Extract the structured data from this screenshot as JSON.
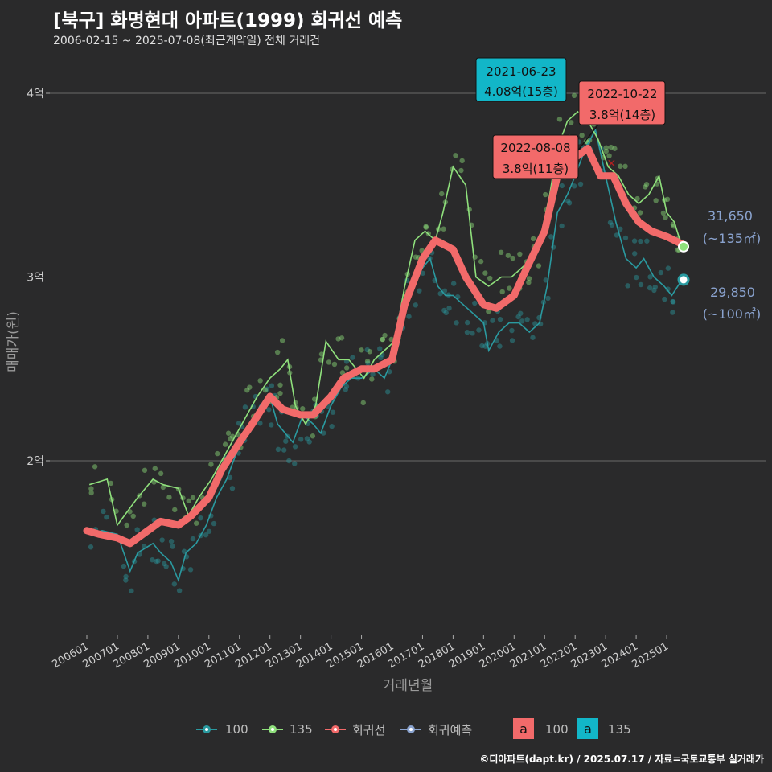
{
  "title": "[북구] 화명현대 아파트(1999) 회귀선 예측",
  "subtitle": "2006-02-15 ~ 2025-07-08(최근계약일) 전체 거래건",
  "caption": "©디아파트(dapt.kr) / 2025.07.17 / 자료=국토교통부 실거래가",
  "colors": {
    "s100": "#2a9aa0",
    "s135": "#8fe07c",
    "reg": "#f26a6a",
    "pred": "#8aa3cf",
    "ann_blue": "#12b6c8",
    "ann_red": "#f26a6a"
  },
  "legend": {
    "items": [
      {
        "label": "100",
        "color": "#2a9aa0"
      },
      {
        "label": "135",
        "color": "#8fe07c"
      },
      {
        "label": "회귀선",
        "color": "#f26a6a"
      },
      {
        "label": "회귀예측",
        "color": "#8aa3cf"
      }
    ],
    "keys": [
      {
        "letter": "a",
        "label": "100",
        "color": "#f26a6a"
      },
      {
        "letter": "a",
        "label": "135",
        "color": "#12b6c8"
      }
    ]
  },
  "chart_data": {
    "type": "line",
    "xlabel": "거래년월",
    "ylabel": "매매가(원)",
    "xlim": [
      "2006-01",
      "2025-12"
    ],
    "ylim": [
      1.0,
      4.25
    ],
    "y_unit": "억",
    "y_ticks": [
      {
        "value": 2,
        "label": "2억"
      },
      {
        "value": 3,
        "label": "3억"
      },
      {
        "value": 4,
        "label": "4억"
      }
    ],
    "x_ticks": [
      "200601",
      "200701",
      "200801",
      "200901",
      "201001",
      "201101",
      "201201",
      "201301",
      "201401",
      "201501",
      "201601",
      "201701",
      "201801",
      "201901",
      "202001",
      "202101",
      "202201",
      "202301",
      "202401",
      "202501"
    ],
    "grid": "horizontal",
    "series": [
      {
        "name": "100",
        "points": [
          [
            "2006-02",
            1.6
          ],
          [
            "2006-07",
            1.62
          ],
          [
            "2007-01",
            1.6
          ],
          [
            "2007-06",
            1.4
          ],
          [
            "2007-09",
            1.5
          ],
          [
            "2008-03",
            1.55
          ],
          [
            "2008-06",
            1.5
          ],
          [
            "2008-10",
            1.45
          ],
          [
            "2009-01",
            1.35
          ],
          [
            "2009-04",
            1.5
          ],
          [
            "2009-08",
            1.55
          ],
          [
            "2009-12",
            1.65
          ],
          [
            "2010-04",
            1.8
          ],
          [
            "2010-08",
            1.9
          ],
          [
            "2010-12",
            2.05
          ],
          [
            "2011-03",
            2.15
          ],
          [
            "2011-06",
            2.2
          ],
          [
            "2011-09",
            2.3
          ],
          [
            "2012-01",
            2.35
          ],
          [
            "2012-04",
            2.2
          ],
          [
            "2012-07",
            2.15
          ],
          [
            "2012-10",
            2.1
          ],
          [
            "2013-02",
            2.25
          ],
          [
            "2013-06",
            2.2
          ],
          [
            "2013-09",
            2.15
          ],
          [
            "2014-01",
            2.3
          ],
          [
            "2014-05",
            2.4
          ],
          [
            "2014-09",
            2.45
          ],
          [
            "2015-01",
            2.45
          ],
          [
            "2015-06",
            2.5
          ],
          [
            "2015-10",
            2.45
          ],
          [
            "2016-01",
            2.55
          ],
          [
            "2016-05",
            2.75
          ],
          [
            "2016-09",
            2.95
          ],
          [
            "2017-01",
            3.05
          ],
          [
            "2017-04",
            3.1
          ],
          [
            "2017-07",
            2.95
          ],
          [
            "2017-10",
            2.9
          ],
          [
            "2018-01",
            2.9
          ],
          [
            "2018-05",
            2.85
          ],
          [
            "2018-09",
            2.8
          ],
          [
            "2019-01",
            2.75
          ],
          [
            "2019-03",
            2.6
          ],
          [
            "2019-07",
            2.7
          ],
          [
            "2019-11",
            2.75
          ],
          [
            "2020-03",
            2.75
          ],
          [
            "2020-07",
            2.7
          ],
          [
            "2020-11",
            2.75
          ],
          [
            "2021-02",
            2.95
          ],
          [
            "2021-06",
            3.35
          ],
          [
            "2021-10",
            3.45
          ],
          [
            "2022-01",
            3.55
          ],
          [
            "2022-05",
            3.7
          ],
          [
            "2022-09",
            3.8
          ],
          [
            "2023-01",
            3.55
          ],
          [
            "2023-05",
            3.3
          ],
          [
            "2023-09",
            3.1
          ],
          [
            "2024-01",
            3.05
          ],
          [
            "2024-04",
            3.1
          ],
          [
            "2024-08",
            3.0
          ],
          [
            "2024-12",
            2.95
          ],
          [
            "2025-03",
            2.9
          ],
          [
            "2025-07",
            2.985
          ]
        ]
      },
      {
        "name": "135",
        "points": [
          [
            "2006-02",
            1.87
          ],
          [
            "2006-09",
            1.9
          ],
          [
            "2007-01",
            1.65
          ],
          [
            "2007-09",
            1.8
          ],
          [
            "2008-03",
            1.9
          ],
          [
            "2008-07",
            1.87
          ],
          [
            "2009-01",
            1.85
          ],
          [
            "2009-05",
            1.7
          ],
          [
            "2009-09",
            1.8
          ],
          [
            "2010-02",
            1.9
          ],
          [
            "2010-08",
            2.05
          ],
          [
            "2010-12",
            2.15
          ],
          [
            "2011-04",
            2.25
          ],
          [
            "2011-08",
            2.35
          ],
          [
            "2012-01",
            2.45
          ],
          [
            "2012-05",
            2.5
          ],
          [
            "2012-08",
            2.55
          ],
          [
            "2012-11",
            2.3
          ],
          [
            "2013-03",
            2.2
          ],
          [
            "2013-07",
            2.3
          ],
          [
            "2013-11",
            2.65
          ],
          [
            "2014-04",
            2.55
          ],
          [
            "2014-08",
            2.55
          ],
          [
            "2015-02",
            2.45
          ],
          [
            "2015-06",
            2.55
          ],
          [
            "2015-10",
            2.6
          ],
          [
            "2016-02",
            2.65
          ],
          [
            "2016-06",
            2.95
          ],
          [
            "2016-10",
            3.2
          ],
          [
            "2017-02",
            3.25
          ],
          [
            "2017-06",
            3.2
          ],
          [
            "2017-09",
            3.35
          ],
          [
            "2018-01",
            3.6
          ],
          [
            "2018-06",
            3.5
          ],
          [
            "2018-10",
            3.0
          ],
          [
            "2019-03",
            2.95
          ],
          [
            "2019-08",
            3.0
          ],
          [
            "2019-12",
            3.0
          ],
          [
            "2020-04",
            3.05
          ],
          [
            "2020-08",
            3.1
          ],
          [
            "2020-12",
            3.25
          ],
          [
            "2021-03",
            3.45
          ],
          [
            "2021-06",
            3.7
          ],
          [
            "2021-10",
            3.85
          ],
          [
            "2022-02",
            3.9
          ],
          [
            "2022-06",
            3.85
          ],
          [
            "2022-10",
            3.75
          ],
          [
            "2023-02",
            3.6
          ],
          [
            "2023-06",
            3.55
          ],
          [
            "2023-10",
            3.45
          ],
          [
            "2024-02",
            3.4
          ],
          [
            "2024-06",
            3.45
          ],
          [
            "2024-10",
            3.55
          ],
          [
            "2025-01",
            3.35
          ],
          [
            "2025-04",
            3.3
          ],
          [
            "2025-07",
            3.165
          ]
        ]
      },
      {
        "name": "회귀선",
        "points": [
          [
            "2006-01",
            1.62
          ],
          [
            "2006-06",
            1.6
          ],
          [
            "2007-01",
            1.58
          ],
          [
            "2007-06",
            1.55
          ],
          [
            "2008-01",
            1.62
          ],
          [
            "2008-06",
            1.67
          ],
          [
            "2009-01",
            1.65
          ],
          [
            "2009-06",
            1.7
          ],
          [
            "2010-01",
            1.8
          ],
          [
            "2010-06",
            1.95
          ],
          [
            "2011-01",
            2.1
          ],
          [
            "2011-06",
            2.2
          ],
          [
            "2012-01",
            2.35
          ],
          [
            "2012-06",
            2.28
          ],
          [
            "2013-01",
            2.25
          ],
          [
            "2013-06",
            2.25
          ],
          [
            "2014-01",
            2.35
          ],
          [
            "2014-06",
            2.45
          ],
          [
            "2015-01",
            2.5
          ],
          [
            "2015-06",
            2.5
          ],
          [
            "2016-01",
            2.55
          ],
          [
            "2016-06",
            2.85
          ],
          [
            "2017-01",
            3.1
          ],
          [
            "2017-06",
            3.2
          ],
          [
            "2018-01",
            3.15
          ],
          [
            "2018-06",
            3.0
          ],
          [
            "2019-01",
            2.85
          ],
          [
            "2019-06",
            2.83
          ],
          [
            "2020-01",
            2.9
          ],
          [
            "2020-06",
            3.05
          ],
          [
            "2021-01",
            3.25
          ],
          [
            "2021-06",
            3.55
          ],
          [
            "2022-01",
            3.65
          ],
          [
            "2022-06",
            3.7
          ],
          [
            "2022-11",
            3.55
          ],
          [
            "2023-04",
            3.55
          ],
          [
            "2023-09",
            3.4
          ],
          [
            "2024-02",
            3.3
          ],
          [
            "2024-07",
            3.25
          ],
          [
            "2025-01",
            3.22
          ],
          [
            "2025-07",
            3.18
          ]
        ]
      }
    ],
    "predictions": [
      {
        "name": "135",
        "x": "2025-07",
        "value": 31650,
        "label": "31,650",
        "area": "(~135㎡)"
      },
      {
        "name": "100",
        "x": "2025-07",
        "value": 29850,
        "label": "29,850",
        "area": "(~100㎡)"
      }
    ],
    "annotations": [
      {
        "date": "2021-06-23",
        "text": "4.08억(15층)",
        "x": "2021-06",
        "y": 4.08,
        "style": "blue"
      },
      {
        "date": "2022-10-22",
        "text": "3.8억(14층)",
        "x": "2022-10",
        "y": 3.8,
        "style": "red"
      },
      {
        "date": "2022-08-08",
        "text": "3.8억(11층)",
        "x": "2022-08",
        "y": 3.8,
        "style": "red"
      }
    ]
  }
}
